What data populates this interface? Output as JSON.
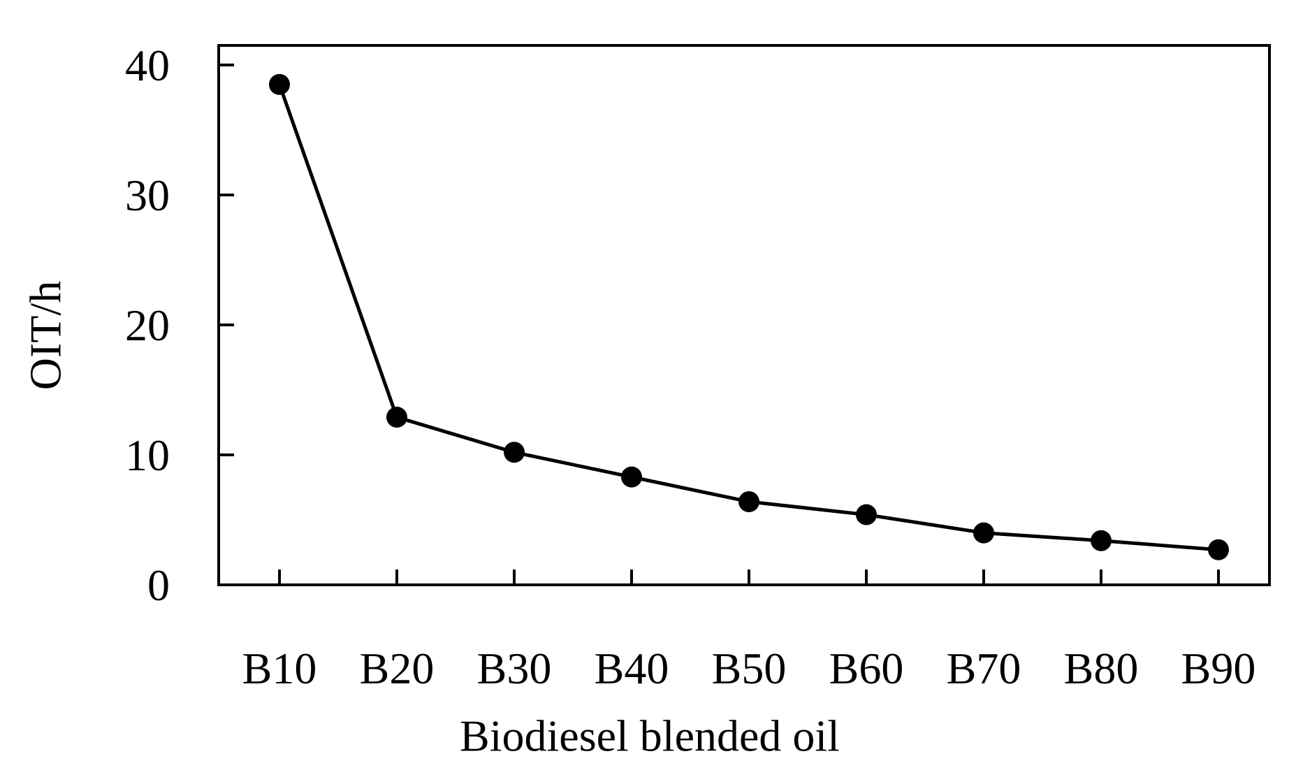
{
  "chart_data": {
    "type": "line",
    "title": "",
    "xlabel": "Biodiesel blended oil",
    "ylabel": "OIT/h",
    "categories": [
      "B10",
      "B20",
      "B30",
      "B40",
      "B50",
      "B60",
      "B70",
      "B80",
      "B90"
    ],
    "series": [
      {
        "values": [
          38.5,
          12.9,
          10.2,
          8.3,
          6.4,
          5.4,
          4.0,
          3.4,
          2.7
        ]
      }
    ],
    "y_ticks": [
      "0",
      "10",
      "20",
      "30",
      "40"
    ],
    "ylim": [
      0,
      40
    ],
    "grid": false,
    "legend": "none",
    "colors": {
      "line": "#000000",
      "marker": "#000000",
      "frame": "#000000"
    }
  }
}
